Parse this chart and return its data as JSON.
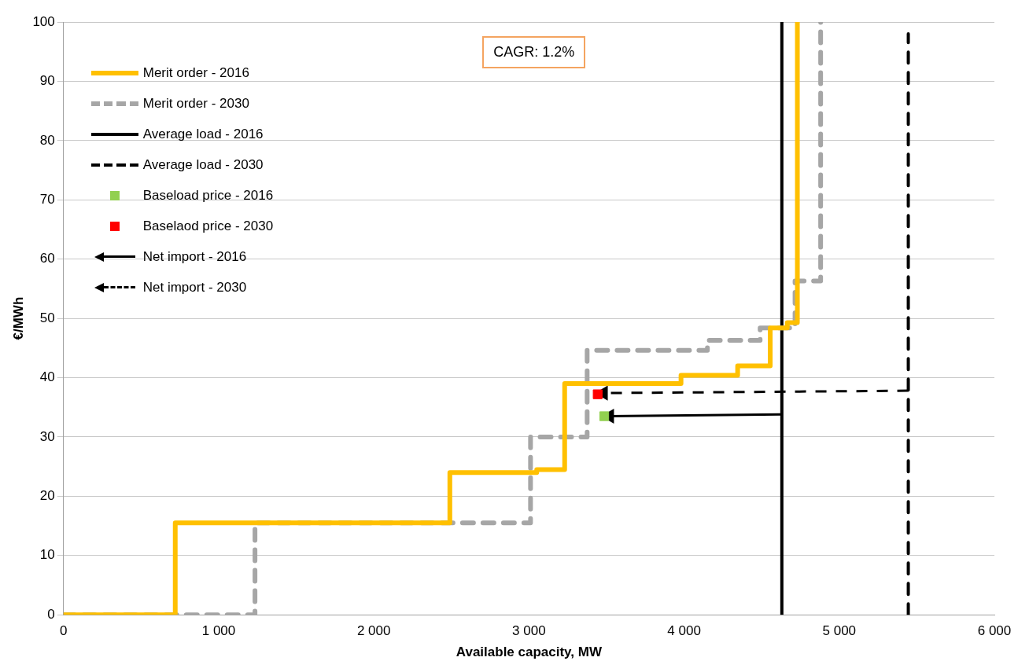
{
  "chart_data": {
    "type": "step",
    "xlabel": "Available capacity, MW",
    "ylabel": "€/MWh",
    "annotations": [
      "CAGR: 1.2%"
    ],
    "series": [
      {
        "name": "Merit order - 2016",
        "color": "#ffc000",
        "line_style": "solid",
        "x": [
          0,
          720,
          2490,
          3050,
          3230,
          3980,
          4345,
          4555,
          4665,
          4730
        ],
        "values": [
          0,
          15.5,
          24,
          24.5,
          39,
          40.4,
          42,
          48.4,
          49.3,
          100
        ]
      },
      {
        "name": "Merit order - 2030",
        "color": "#a6a6a6",
        "line_style": "dashed",
        "x": [
          0,
          1234,
          3010,
          3375,
          4150,
          4490,
          4715,
          4880
        ],
        "values": [
          0,
          15.5,
          30,
          44.6,
          46.3,
          48.4,
          56.3,
          100
        ]
      },
      {
        "name": "Average load - 2016",
        "type": "line",
        "color": "#000000",
        "line_style": "solid",
        "x": [
          4630,
          4630
        ],
        "values": [
          0,
          100
        ]
      },
      {
        "name": "Average load - 2030",
        "type": "line",
        "color": "#000000",
        "line_style": "dashed",
        "x": [
          5445,
          5445
        ],
        "values": [
          0,
          98
        ]
      },
      {
        "name": "Baseload price - 2016",
        "type": "scatter",
        "color": "#92d050",
        "marker": "square",
        "x": [
          3485
        ],
        "values": [
          33.5
        ]
      },
      {
        "name": "Baselaod price - 2030",
        "type": "scatter",
        "color": "#ff0000",
        "marker": "square",
        "x": [
          3443
        ],
        "values": [
          37.2
        ]
      },
      {
        "name": "Net import - 2016",
        "type": "line",
        "color": "#000000",
        "line_style": "solid",
        "marker": "triangle",
        "x": [
          4630,
          3520
        ],
        "values": [
          33.8,
          33.5
        ]
      },
      {
        "name": "Net import - 2030",
        "type": "line",
        "color": "#000000",
        "line_style": "dashed",
        "marker": "triangle",
        "x": [
          5445,
          3480
        ],
        "values": [
          37.8,
          37.4
        ]
      }
    ],
    "xlim": [
      0,
      6000
    ],
    "xticks": [
      0,
      {
        "value": 1000,
        "label": "1 000"
      },
      {
        "value": 2000,
        "label": "2 000"
      },
      {
        "value": 3000,
        "label": "3 000"
      },
      {
        "value": 4000,
        "label": "4 000"
      },
      {
        "value": 5000,
        "label": "5 000"
      },
      {
        "value": 6000,
        "label": "6 000"
      }
    ],
    "ylim": [
      0,
      100
    ],
    "yticks": [
      0,
      10,
      20,
      30,
      40,
      50,
      60,
      70,
      80,
      90,
      100
    ],
    "grid": "y",
    "legend": "top left"
  }
}
